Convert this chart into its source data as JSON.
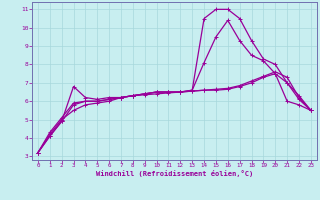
{
  "xlabel": "Windchill (Refroidissement éolien,°C)",
  "bg_color": "#c8eef0",
  "grid_color": "#a8d8dc",
  "line_color": "#990099",
  "spine_color": "#7070b0",
  "xlim": [
    -0.5,
    23.5
  ],
  "ylim": [
    2.8,
    11.4
  ],
  "xticks": [
    0,
    1,
    2,
    3,
    4,
    5,
    6,
    7,
    8,
    9,
    10,
    11,
    12,
    13,
    14,
    15,
    16,
    17,
    18,
    19,
    20,
    21,
    22,
    23
  ],
  "yticks": [
    3,
    4,
    5,
    6,
    7,
    8,
    9,
    10,
    11
  ],
  "line1_x": [
    0,
    1,
    2,
    3,
    4,
    5,
    6,
    7,
    8,
    9,
    10,
    11,
    12,
    13,
    14,
    15,
    16,
    17,
    18,
    19,
    20,
    21,
    22,
    23
  ],
  "line1_y": [
    3.2,
    4.1,
    4.9,
    6.8,
    6.2,
    6.1,
    6.2,
    6.2,
    6.3,
    6.4,
    6.5,
    6.5,
    6.5,
    6.6,
    10.5,
    11.0,
    11.0,
    10.5,
    9.3,
    8.3,
    8.0,
    7.0,
    6.3,
    5.5
  ],
  "line2_x": [
    0,
    1,
    2,
    3,
    4,
    5,
    6,
    7,
    8,
    9,
    10,
    11,
    12,
    13,
    14,
    15,
    16,
    17,
    18,
    19,
    20,
    21,
    22,
    23
  ],
  "line2_y": [
    3.2,
    4.1,
    4.9,
    5.8,
    6.0,
    6.0,
    6.1,
    6.2,
    6.3,
    6.4,
    6.5,
    6.5,
    6.5,
    6.6,
    8.1,
    9.5,
    10.4,
    9.3,
    8.5,
    8.2,
    7.5,
    6.0,
    5.8,
    5.5
  ],
  "line3_x": [
    0,
    1,
    2,
    3,
    4,
    5,
    6,
    7,
    8,
    9,
    10,
    11,
    12,
    13,
    14,
    15,
    16,
    17,
    18,
    19,
    20,
    21,
    22,
    23
  ],
  "line3_y": [
    3.2,
    4.2,
    5.0,
    5.5,
    5.8,
    5.9,
    6.0,
    6.2,
    6.3,
    6.35,
    6.4,
    6.45,
    6.5,
    6.55,
    6.6,
    6.6,
    6.65,
    6.8,
    7.0,
    7.3,
    7.5,
    7.0,
    6.1,
    5.5
  ],
  "line4_x": [
    0,
    1,
    2,
    3,
    4,
    5,
    6,
    7,
    8,
    9,
    10,
    11,
    12,
    13,
    14,
    15,
    16,
    17,
    18,
    19,
    20,
    21,
    22,
    23
  ],
  "line4_y": [
    3.2,
    4.3,
    5.1,
    5.9,
    6.0,
    6.0,
    6.1,
    6.2,
    6.3,
    6.4,
    6.5,
    6.5,
    6.5,
    6.55,
    6.6,
    6.65,
    6.7,
    6.85,
    7.1,
    7.35,
    7.6,
    7.3,
    6.2,
    5.5
  ]
}
